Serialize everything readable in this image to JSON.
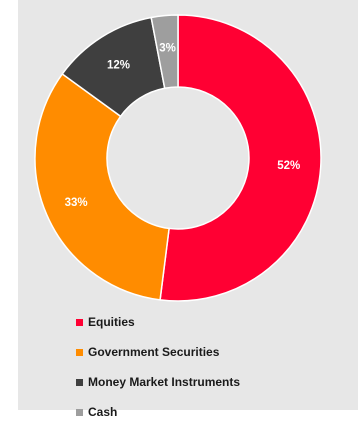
{
  "chart_data": {
    "type": "pie",
    "variant": "donut",
    "title": "",
    "categories": [
      "Equities",
      "Government Securities",
      "Money Market Instruments",
      "Cash"
    ],
    "values": [
      52,
      33,
      12,
      3
    ],
    "value_labels": [
      "52%",
      "33%",
      "12%",
      "3%"
    ],
    "colors": [
      "#ff0033",
      "#ff8c00",
      "#3f3f3f",
      "#9e9e9e"
    ],
    "legend_position": "bottom-left",
    "background": "#e7e7e7"
  }
}
